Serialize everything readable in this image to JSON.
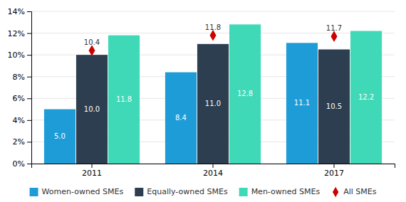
{
  "chart_data": {
    "type": "bar",
    "categories": [
      "2011",
      "2014",
      "2017"
    ],
    "series": [
      {
        "name": "Women-owned SMEs",
        "type": "bar",
        "color": "#1E9CD7",
        "values": [
          5.0,
          8.4,
          11.1
        ],
        "value_labels": [
          "5.0",
          "8.4",
          "11.1"
        ]
      },
      {
        "name": "Equally-owned SMEs",
        "type": "bar",
        "color": "#2C3E50",
        "values": [
          10.0,
          11.0,
          10.5
        ],
        "value_labels": [
          "10.0",
          "11.0",
          "10.5"
        ]
      },
      {
        "name": "Men-owned SMEs",
        "type": "bar",
        "color": "#40D9B8",
        "values": [
          11.8,
          12.8,
          12.2
        ],
        "value_labels": [
          "11.8",
          "12.8",
          "12.2"
        ]
      },
      {
        "name": "All SMEs",
        "type": "scatter",
        "marker": "diamond",
        "color": "#CC0000",
        "values": [
          10.4,
          11.8,
          11.7
        ],
        "value_labels": [
          "10.4",
          "11.8",
          "11.7"
        ]
      }
    ],
    "ylim": [
      0,
      14
    ],
    "yticks": [
      {
        "value": 0,
        "label": "0%"
      },
      {
        "value": 2,
        "label": "2%"
      },
      {
        "value": 4,
        "label": "4%"
      },
      {
        "value": 6,
        "label": "6%"
      },
      {
        "value": 8,
        "label": "8%"
      },
      {
        "value": 10,
        "label": "10%"
      },
      {
        "value": 12,
        "label": "12%"
      },
      {
        "value": 14,
        "label": "14%"
      }
    ],
    "grid": true,
    "data_labels": true,
    "legend": "bottom"
  }
}
